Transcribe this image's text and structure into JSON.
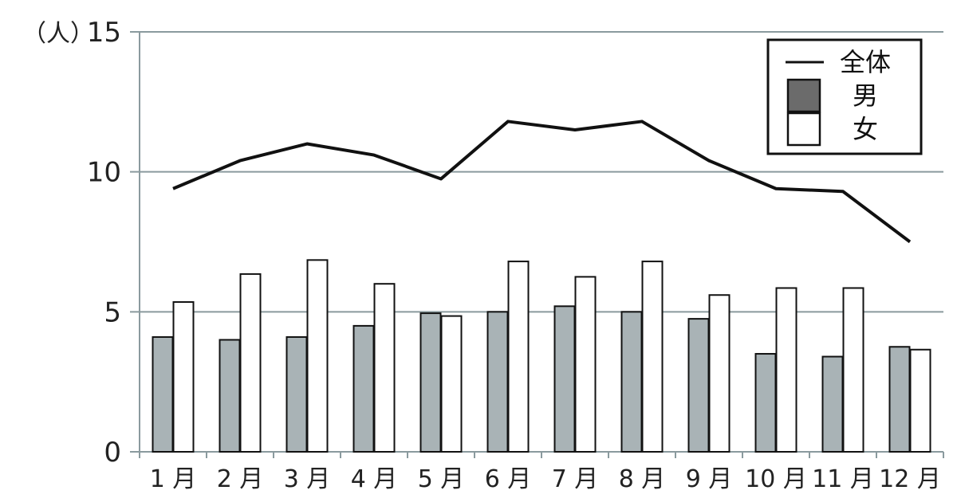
{
  "chart_data": {
    "type": "bar",
    "categories": [
      "1 月",
      "2 月",
      "3 月",
      "4 月",
      "5 月",
      "6 月",
      "7 月",
      "8 月",
      "9 月",
      "10 月",
      "11 月",
      "12 月"
    ],
    "y_unit_label": "（人）",
    "ylim": [
      0,
      15
    ],
    "yticks": [
      0,
      5,
      10,
      15
    ],
    "grid": "horizontal",
    "legend_position": "top-right",
    "series": [
      {
        "name": "男",
        "type": "bar",
        "color": "#a9b3b6",
        "values": [
          4.1,
          4.0,
          4.1,
          4.5,
          4.95,
          5.0,
          5.2,
          5.0,
          4.75,
          3.5,
          3.4,
          3.75
        ]
      },
      {
        "name": "女",
        "type": "bar",
        "color": "#ffffff",
        "values": [
          5.35,
          6.35,
          6.85,
          6.0,
          4.85,
          6.8,
          6.25,
          6.8,
          5.6,
          5.85,
          5.85,
          3.65
        ]
      },
      {
        "name": "全体",
        "type": "line",
        "color": "#111111",
        "values": [
          9.4,
          10.4,
          11.0,
          10.6,
          9.75,
          11.8,
          11.5,
          11.8,
          10.4,
          9.4,
          9.3,
          7.5
        ]
      }
    ],
    "legend": [
      {
        "label": "全体",
        "kind": "line"
      },
      {
        "label": "男",
        "kind": "box-dark"
      },
      {
        "label": "女",
        "kind": "box-white"
      }
    ]
  }
}
